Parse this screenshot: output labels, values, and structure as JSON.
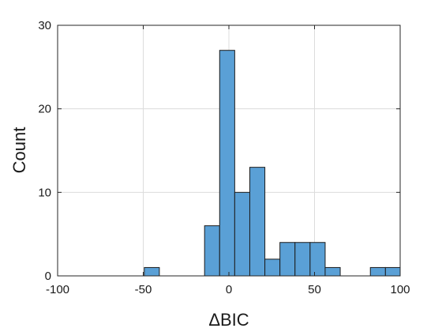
{
  "chart_data": {
    "type": "bar",
    "title": "",
    "xlabel": "ΔBIC",
    "ylabel": "Count",
    "xlim": [
      -100,
      100
    ],
    "ylim": [
      0,
      30
    ],
    "xticks": [
      -100,
      -50,
      0,
      50,
      100
    ],
    "yticks": [
      0,
      10,
      20,
      30
    ],
    "grid": true,
    "bin_width": 8.8,
    "bins": [
      {
        "x0": -49.4,
        "x1": -40.6,
        "value": 1
      },
      {
        "x0": -40.6,
        "x1": -31.8,
        "value": 0
      },
      {
        "x0": -31.8,
        "x1": -23.0,
        "value": 0
      },
      {
        "x0": -23.0,
        "x1": -14.2,
        "value": 0
      },
      {
        "x0": -14.2,
        "x1": -5.4,
        "value": 6
      },
      {
        "x0": -5.4,
        "x1": 3.4,
        "value": 27
      },
      {
        "x0": 3.4,
        "x1": 12.2,
        "value": 10
      },
      {
        "x0": 12.2,
        "x1": 21.0,
        "value": 13
      },
      {
        "x0": 21.0,
        "x1": 29.8,
        "value": 2
      },
      {
        "x0": 29.8,
        "x1": 38.6,
        "value": 4
      },
      {
        "x0": 38.6,
        "x1": 47.4,
        "value": 4
      },
      {
        "x0": 47.4,
        "x1": 56.2,
        "value": 4
      },
      {
        "x0": 56.2,
        "x1": 65.0,
        "value": 1
      },
      {
        "x0": 65.0,
        "x1": 73.8,
        "value": 0
      },
      {
        "x0": 73.8,
        "x1": 82.6,
        "value": 0
      },
      {
        "x0": 82.6,
        "x1": 91.4,
        "value": 1
      },
      {
        "x0": 91.4,
        "x1": 100.2,
        "value": 1
      }
    ]
  },
  "colors": {
    "bar_fill": "#5aa0d6",
    "bar_stroke": "#1c1c1c",
    "grid": "#dcdcdc",
    "axis": "#262626",
    "text": "#1a1a1a"
  }
}
